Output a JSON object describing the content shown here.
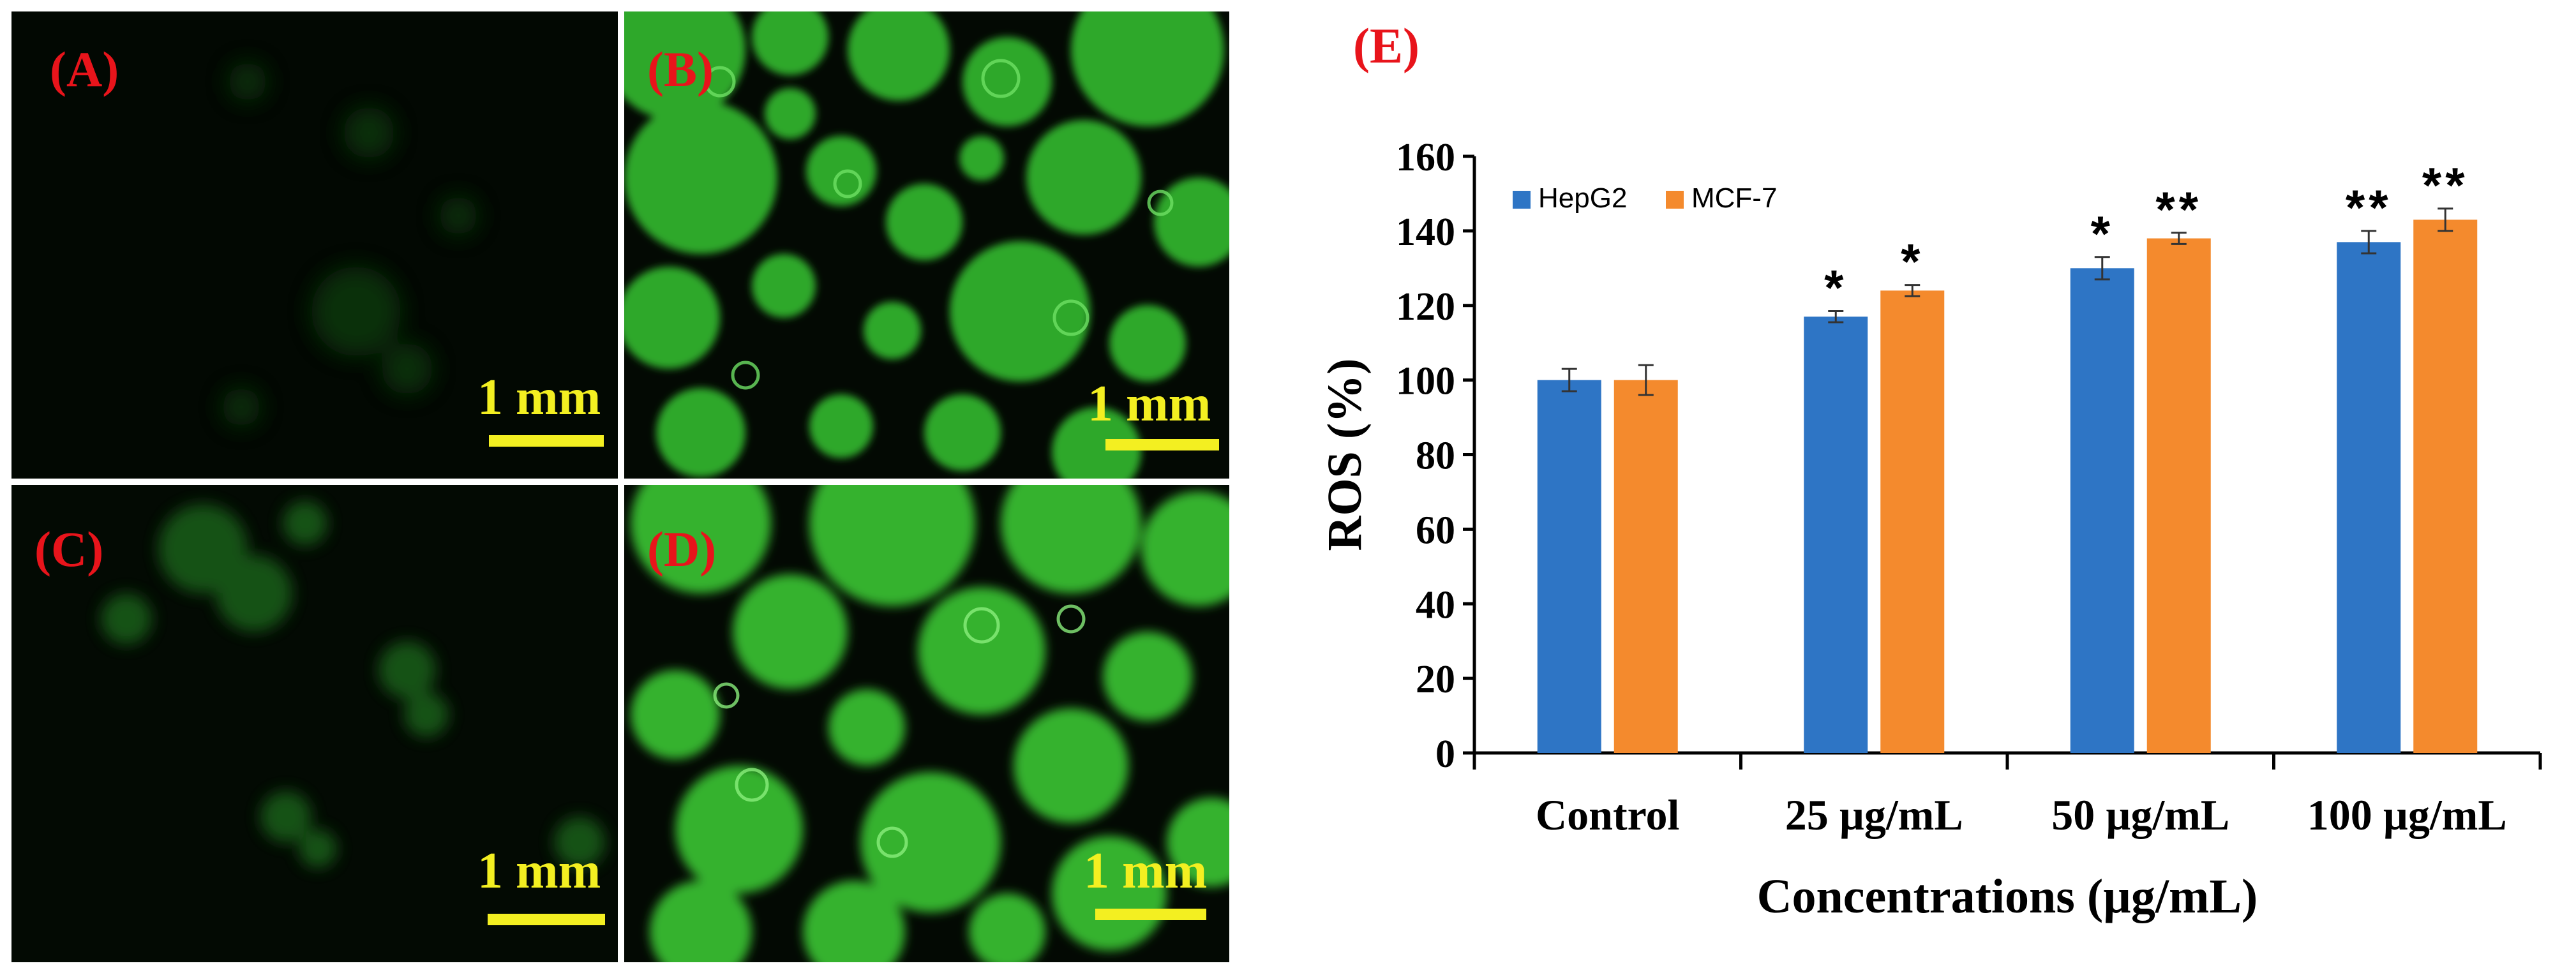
{
  "panels": [
    {
      "label": "(A)",
      "scale_bar": "1 mm"
    },
    {
      "label": "(B)",
      "scale_bar": "1 mm"
    },
    {
      "label": "(C)",
      "scale_bar": "1 mm"
    },
    {
      "label": "(D)",
      "scale_bar": "1 mm"
    }
  ],
  "chart_label": "(E)",
  "colors": {
    "hepg2": "#2e75c5",
    "mcf7": "#f48a2d",
    "panel_label": "#e8141b",
    "scale": "#f3ef21"
  },
  "chart_data": {
    "type": "bar",
    "categories": [
      "Control",
      "25 µg/mL",
      "50 µg/mL",
      "100 µg/mL"
    ],
    "series": [
      {
        "name": "HepG2",
        "values": [
          100,
          117,
          130,
          137
        ],
        "errors": [
          3,
          1.5,
          3,
          3
        ],
        "significance": [
          "",
          "*",
          "*",
          "**"
        ]
      },
      {
        "name": "MCF-7",
        "values": [
          100,
          124,
          138,
          143
        ],
        "errors": [
          4,
          1.5,
          1.5,
          3
        ],
        "significance": [
          "",
          "*",
          "**",
          "**"
        ]
      }
    ],
    "xlabel": "Concentrations (µg/mL)",
    "ylabel": "ROS (%)",
    "ylim": [
      0,
      160
    ],
    "yticks": [
      "0",
      "20",
      "40",
      "60",
      "80",
      "100",
      "120",
      "140",
      "160"
    ],
    "legend": "top-left"
  }
}
